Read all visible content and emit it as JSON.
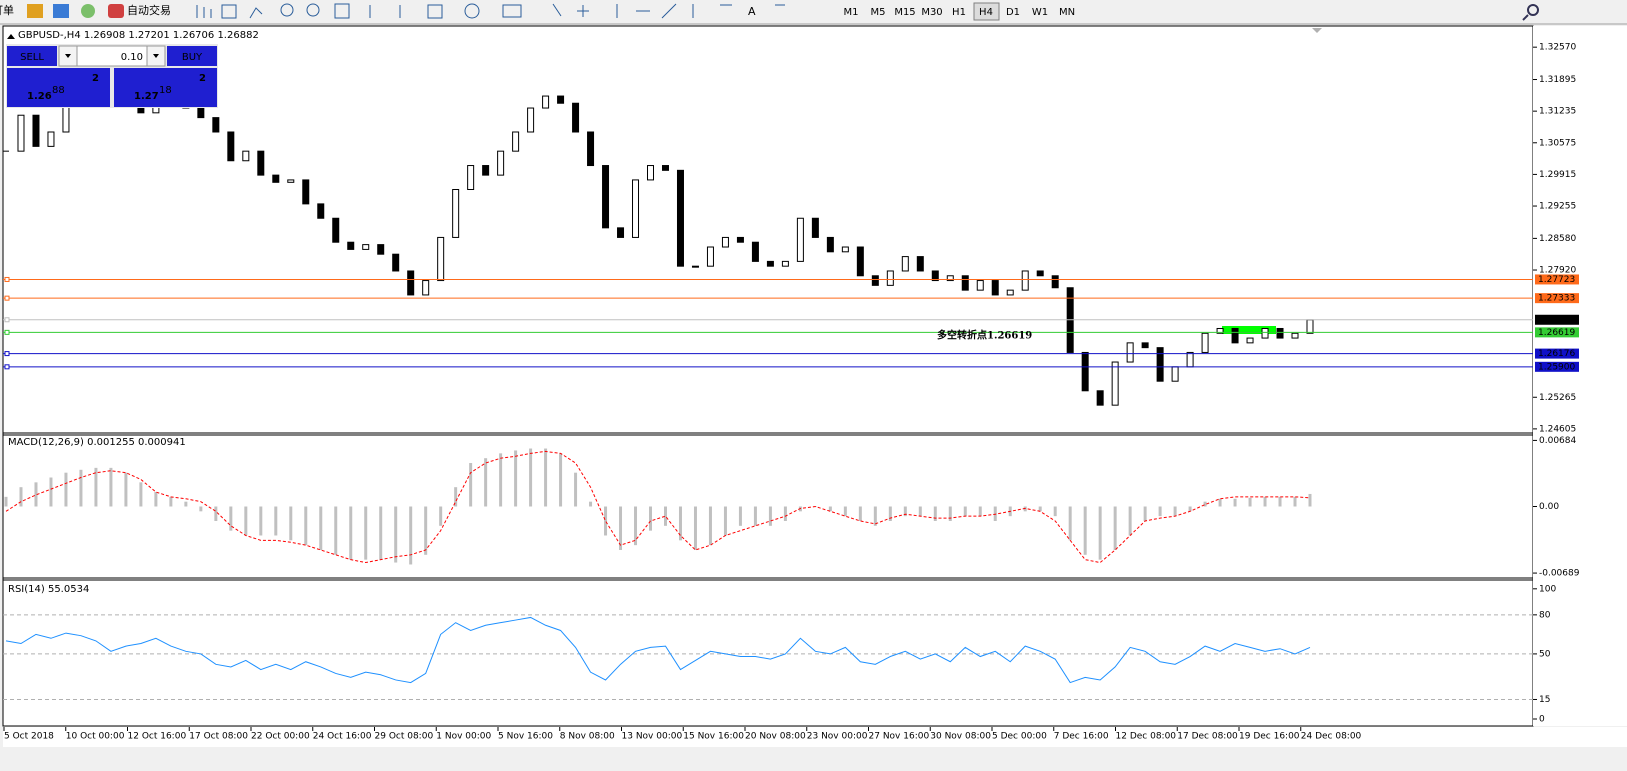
{
  "toolbar": {
    "order": "订单",
    "auto_trade": "自动交易",
    "text_tool": "A",
    "timeframes": [
      "M1",
      "M5",
      "M15",
      "M30",
      "H1",
      "H4",
      "D1",
      "W1",
      "MN"
    ],
    "active_timeframe": 5
  },
  "trade_panel": {
    "sell": "SELL",
    "buy": "BUY",
    "lot": "0.10",
    "bid": {
      "big": "1.26",
      "main": "88",
      "sup": "2"
    },
    "ask": {
      "big": "1.27",
      "main": "18",
      "sup": "2"
    },
    "color": "#1f1fd0"
  },
  "main_chart": {
    "header": "GBPUSD-,H4 1.26908 1.27201 1.26706 1.26882",
    "ylim": [
      1.2454,
      1.3297
    ],
    "yticks": [
      {
        "value": 1.3257,
        "label": "1.32570"
      },
      1.31895,
      1.31235,
      1.30575,
      1.29915,
      1.29255,
      {
        "value": 1.2858,
        "label": "1.28580"
      },
      {
        "value": 1.2792,
        "label": "1.27920"
      },
      1.25265,
      1.24605
    ],
    "close": [
      1.304,
      1.3115,
      1.305,
      1.308,
      1.314,
      1.317,
      1.319,
      1.318,
      1.315,
      1.312,
      1.315,
      1.316,
      1.313,
      1.311,
      1.308,
      1.302,
      1.304,
      1.299,
      1.2975,
      1.298,
      1.293,
      1.29,
      1.285,
      1.2835,
      1.2845,
      1.2825,
      1.279,
      1.274,
      1.277,
      1.286,
      1.296,
      1.301,
      1.299,
      1.304,
      1.308,
      1.313,
      1.3155,
      1.314,
      1.308,
      1.301,
      1.288,
      1.286,
      1.298,
      1.301,
      1.3,
      1.28,
      1.28,
      1.284,
      1.286,
      1.285,
      1.281,
      1.28,
      1.281,
      1.29,
      1.286,
      1.283,
      1.284,
      1.278,
      1.276,
      1.279,
      1.282,
      1.279,
      1.277,
      1.278,
      1.275,
      1.277,
      1.274,
      1.275,
      1.279,
      1.278,
      1.2755,
      1.262,
      1.254,
      1.251,
      1.26,
      1.264,
      1.263,
      1.256,
      1.259,
      1.262,
      1.266,
      1.267,
      1.264,
      1.265,
      1.267,
      1.265,
      1.266,
      1.2688
    ],
    "up_color": "#ffffff",
    "down_color": "#000000",
    "levels": [
      {
        "value": 1.27723,
        "color": "#ff6a1a"
      },
      {
        "value": 1.27333,
        "color": "#ff6a1a"
      },
      {
        "value": 1.26882,
        "color": "#c0c0c0",
        "label_color": "#000000"
      },
      {
        "value": 1.26619,
        "color": "#33cc33"
      },
      {
        "value": 1.26176,
        "color": "#1010c8"
      },
      {
        "value": 1.259,
        "label": "1.25900",
        "color": "#1010c8"
      }
    ],
    "annotation": "多空转折点1.26619",
    "annotation_color": "#22dd22"
  },
  "macd": {
    "header": "MACD(12,26,9) 0.001255 0.000941",
    "ylim": [
      -0.0074,
      0.0074
    ],
    "yticks": [
      0.00684,
      {
        "value": 0,
        "label": "0.00"
      },
      -0.00689
    ],
    "histogram": [
      0.001,
      0.002,
      0.0025,
      0.003,
      0.0035,
      0.0038,
      0.004,
      0.004,
      0.0035,
      0.0025,
      0.0015,
      0.001,
      0.0005,
      -0.0005,
      -0.0015,
      -0.0025,
      -0.003,
      -0.003,
      -0.003,
      -0.0035,
      -0.004,
      -0.0045,
      -0.005,
      -0.0055,
      -0.0055,
      -0.0055,
      -0.0058,
      -0.006,
      -0.005,
      -0.002,
      0.002,
      0.0045,
      0.005,
      0.0055,
      0.0058,
      0.006,
      0.006,
      0.0055,
      0.0035,
      0.0005,
      -0.003,
      -0.0045,
      -0.004,
      -0.0025,
      -0.002,
      -0.0035,
      -0.0045,
      -0.004,
      -0.003,
      -0.002,
      -0.002,
      -0.002,
      -0.0015,
      -0.0005,
      0,
      -0.0005,
      -0.001,
      -0.0015,
      -0.002,
      -0.0015,
      -0.001,
      -0.001,
      -0.0015,
      -0.0015,
      -0.001,
      -0.001,
      -0.0015,
      -0.001,
      -0.0005,
      -0.0005,
      -0.001,
      -0.0035,
      -0.005,
      -0.0055,
      -0.0045,
      -0.003,
      -0.0015,
      -0.001,
      -0.001,
      -0.0005,
      0.0005,
      0.0008,
      0.0008,
      0.0009,
      0.001,
      0.001,
      0.001,
      0.0013
    ],
    "signal": [
      -0.0005,
      0.0005,
      0.0012,
      0.0018,
      0.0024,
      0.003,
      0.0035,
      0.0037,
      0.0035,
      0.0028,
      0.0015,
      0.001,
      0.0008,
      0.0005,
      -0.0005,
      -0.002,
      -0.003,
      -0.0035,
      -0.0035,
      -0.0037,
      -0.004,
      -0.0045,
      -0.005,
      -0.0055,
      -0.0058,
      -0.0055,
      -0.0052,
      -0.005,
      -0.0045,
      -0.0025,
      0.0005,
      0.0035,
      0.0045,
      0.005,
      0.0052,
      0.0055,
      0.0057,
      0.0055,
      0.0045,
      0.002,
      -0.0015,
      -0.004,
      -0.0035,
      -0.0015,
      -0.001,
      -0.003,
      -0.0045,
      -0.004,
      -0.003,
      -0.0025,
      -0.002,
      -0.0015,
      -0.001,
      -0.0002,
      0,
      -0.0005,
      -0.001,
      -0.0015,
      -0.0018,
      -0.0012,
      -0.0008,
      -0.001,
      -0.0012,
      -0.0012,
      -0.001,
      -0.001,
      -0.0008,
      -0.0005,
      -0.0002,
      -0.0005,
      -0.0015,
      -0.0035,
      -0.0055,
      -0.0058,
      -0.0045,
      -0.003,
      -0.0015,
      -0.0012,
      -0.001,
      -0.0005,
      0.0002,
      0.0008,
      0.001,
      0.001,
      0.001,
      0.001,
      0.001,
      0.0009
    ],
    "histogram_color": "#c0c0c0",
    "signal_color": "#ff0000"
  },
  "rsi": {
    "header": "RSI(14) 55.0534",
    "ylim": [
      -4.6,
      106
    ],
    "yticks": [
      100,
      80,
      50,
      15,
      0
    ],
    "level_lines": [
      80,
      50,
      15
    ],
    "values": [
      60,
      58,
      65,
      62,
      66,
      64,
      60,
      52,
      56,
      58,
      62,
      56,
      52,
      50,
      42,
      40,
      45,
      38,
      42,
      38,
      44,
      40,
      35,
      32,
      36,
      34,
      30,
      28,
      35,
      65,
      74,
      68,
      72,
      74,
      76,
      78,
      72,
      68,
      55,
      36,
      30,
      42,
      52,
      55,
      56,
      38,
      45,
      52,
      50,
      48,
      48,
      46,
      50,
      62,
      52,
      50,
      55,
      44,
      42,
      48,
      52,
      46,
      50,
      44,
      55,
      48,
      52,
      44,
      56,
      52,
      46,
      28,
      32,
      30,
      40,
      55,
      52,
      44,
      42,
      48,
      56,
      52,
      58,
      55,
      52,
      54,
      50,
      55
    ],
    "color": "#1e90ff"
  },
  "time_axis": [
    "5 Oct 2018",
    "10 Oct 00:00",
    "12 Oct 16:00",
    "17 Oct 08:00",
    "22 Oct 00:00",
    "24 Oct 16:00",
    "29 Oct 08:00",
    "1 Nov 00:00",
    "5 Nov 16:00",
    "8 Nov 08:00",
    "13 Nov 00:00",
    "15 Nov 16:00",
    "20 Nov 08:00",
    "23 Nov 00:00",
    "27 Nov 16:00",
    "30 Nov 08:00",
    "5 Dec 00:00",
    "7 Dec 16:00",
    "12 Dec 08:00",
    "17 Dec 08:00",
    "19 Dec 16:00",
    "24 Dec 08:00"
  ]
}
